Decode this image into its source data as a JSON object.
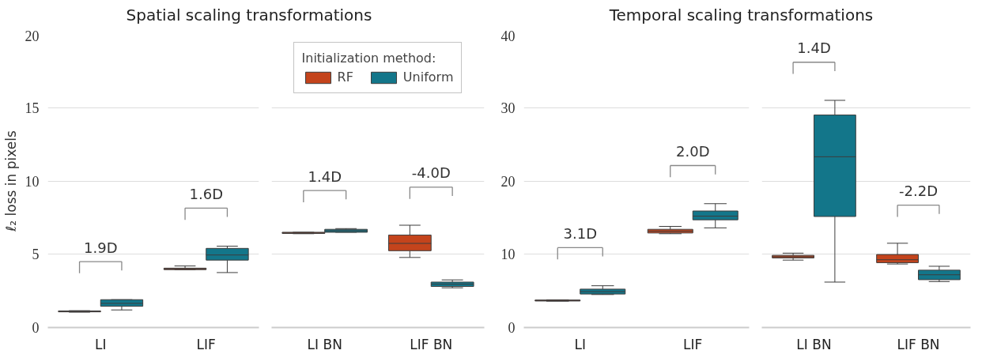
{
  "chart_data": [
    {
      "type": "box",
      "title": "Spatial scaling transformations",
      "ylabel": "ℓ₂ loss in pixels",
      "categories": [
        "LI",
        "LIF"
      ],
      "ylim": [
        0,
        20
      ],
      "yticks": [
        0,
        5,
        10,
        15,
        20
      ],
      "grid": "y",
      "series": [
        {
          "color": "#c4441c",
          "boxes": [
            {
              "low": 1.05,
              "q1": 1.07,
              "median": 1.1,
              "q3": 1.13,
              "high": 1.15
            },
            {
              "low": 3.95,
              "q1": 3.95,
              "median": 4.0,
              "q3": 4.05,
              "high": 4.2
            }
          ]
        },
        {
          "color": "#13768a",
          "boxes": [
            {
              "low": 1.2,
              "q1": 1.45,
              "median": 1.65,
              "q3": 1.9,
              "high": 1.9
            },
            {
              "low": 3.75,
              "q1": 4.6,
              "median": 4.95,
              "q3": 5.4,
              "high": 5.55
            }
          ]
        }
      ],
      "annotations": [
        "1.9D",
        "1.6D"
      ]
    },
    {
      "type": "box",
      "categories": [
        "LI BN",
        "LIF BN"
      ],
      "ylim": [
        0,
        20
      ],
      "yticks": [
        0,
        5,
        10,
        15,
        20
      ],
      "grid": "y",
      "tick_labels": "x",
      "legend": "top",
      "legend_title": "Initialization method:",
      "series": [
        {
          "name": "RF",
          "color": "#c4441c",
          "boxes": [
            {
              "low": 6.4,
              "q1": 6.42,
              "median": 6.45,
              "q3": 6.5,
              "high": 6.5
            },
            {
              "low": 4.78,
              "q1": 5.24,
              "median": 5.74,
              "q3": 6.31,
              "high": 6.98
            }
          ]
        },
        {
          "name": "Uniform",
          "color": "#13768a",
          "boxes": [
            {
              "low": 6.5,
              "q1": 6.5,
              "median": 6.6,
              "q3": 6.7,
              "high": 6.75
            },
            {
              "low": 2.71,
              "q1": 2.8,
              "median": 2.96,
              "q3": 3.1,
              "high": 3.25
            }
          ]
        }
      ],
      "annotations": [
        "1.4D",
        "-4.0D"
      ]
    },
    {
      "type": "box",
      "title": "Temporal scaling transformations",
      "categories": [
        "LI",
        "LIF"
      ],
      "ylim": [
        0,
        40
      ],
      "yticks": [
        0,
        10,
        20,
        30,
        40
      ],
      "grid": "y",
      "series": [
        {
          "color": "#c4441c",
          "boxes": [
            {
              "low": 3.6,
              "q1": 3.62,
              "median": 3.69,
              "q3": 3.75,
              "high": 3.78
            },
            {
              "low": 12.8,
              "q1": 12.9,
              "median": 13.15,
              "q3": 13.4,
              "high": 13.8
            }
          ]
        },
        {
          "color": "#13768a",
          "boxes": [
            {
              "low": 4.5,
              "q1": 4.57,
              "median": 4.9,
              "q3": 5.24,
              "high": 5.7
            },
            {
              "low": 13.6,
              "q1": 14.7,
              "median": 15.2,
              "q3": 15.9,
              "high": 16.9
            }
          ]
        }
      ],
      "annotations": [
        "3.1D",
        "2.0D"
      ]
    },
    {
      "type": "box",
      "categories": [
        "LI BN",
        "LIF BN"
      ],
      "ylim": [
        0,
        40
      ],
      "yticks": [
        0,
        10,
        20,
        30,
        40
      ],
      "grid": "y",
      "tick_labels": "x",
      "series": [
        {
          "color": "#c4441c",
          "boxes": [
            {
              "low": 9.2,
              "q1": 9.5,
              "median": 9.65,
              "q3": 9.85,
              "high": 10.15
            },
            {
              "low": 8.67,
              "q1": 8.85,
              "median": 9.25,
              "q3": 9.96,
              "high": 11.5
            }
          ]
        },
        {
          "color": "#13768a",
          "boxes": [
            {
              "low": 6.2,
              "q1": 15.15,
              "median": 23.3,
              "q3": 29.0,
              "high": 31.0
            },
            {
              "low": 6.27,
              "q1": 6.53,
              "median": 7.2,
              "q3": 7.83,
              "high": 8.36
            }
          ]
        }
      ],
      "annotations": [
        "1.4D",
        "-2.2D"
      ]
    }
  ]
}
